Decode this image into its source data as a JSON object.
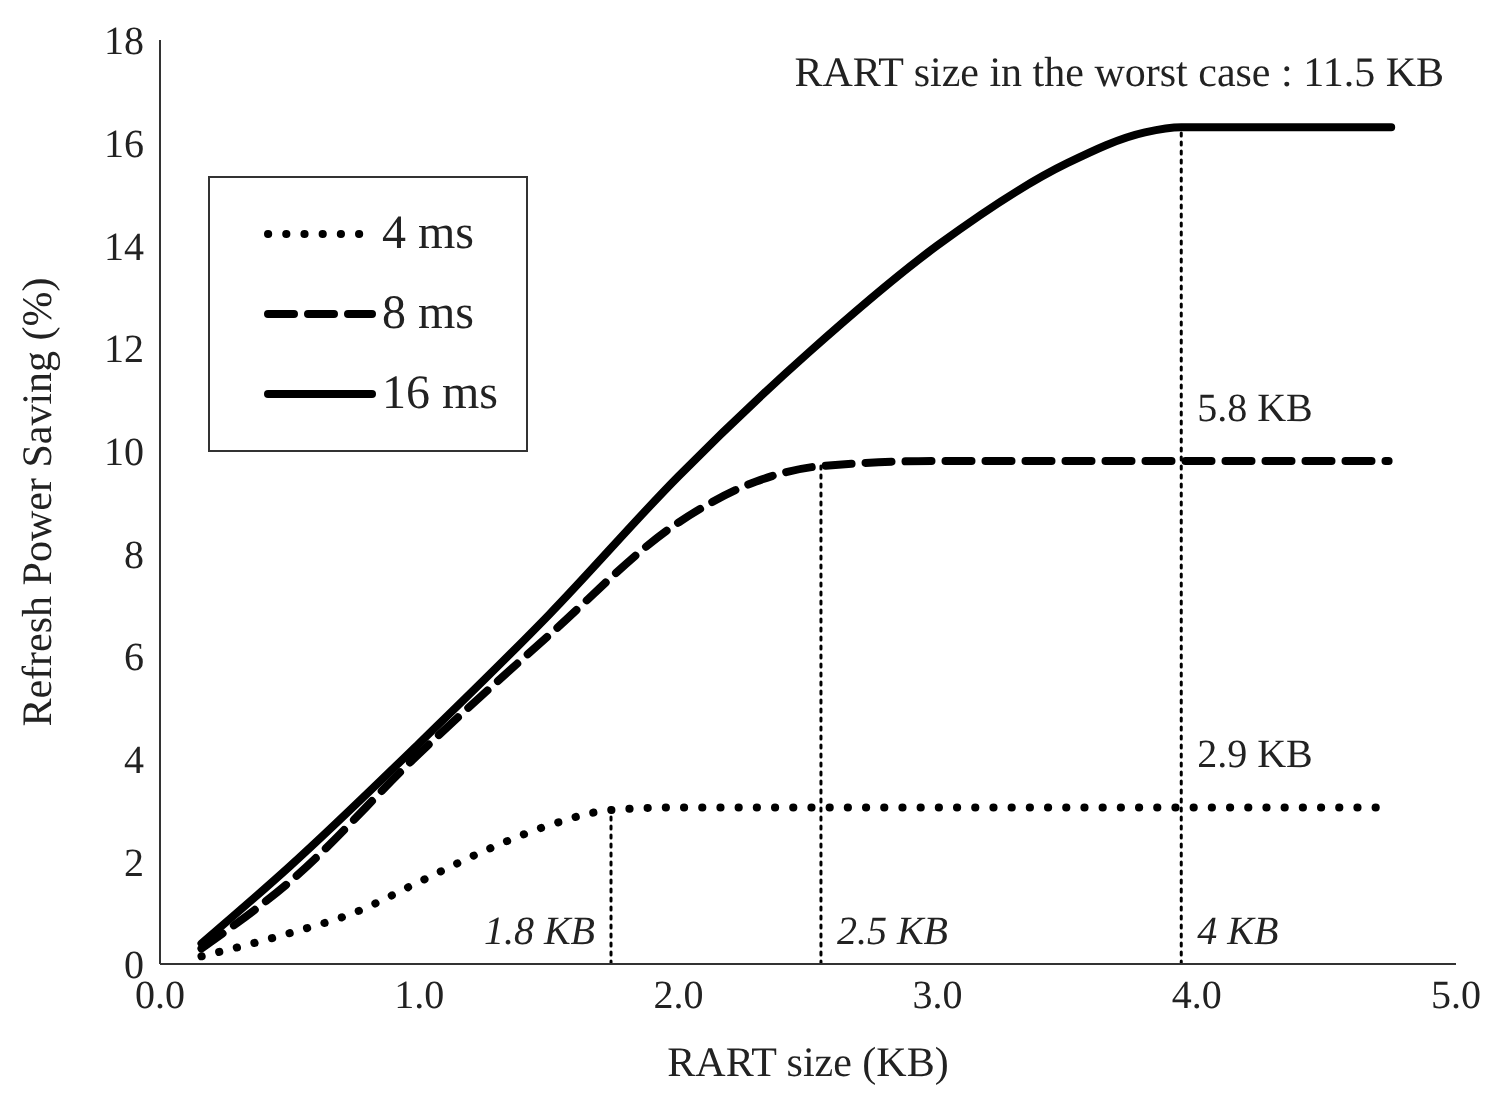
{
  "chart_data": {
    "type": "line",
    "xlabel": "RART size (KB)",
    "ylabel": "Refresh Power Saving (%)",
    "xlim": [
      0,
      5
    ],
    "xticks": [
      {
        "value": 0,
        "label": "0.0"
      },
      {
        "value": 1,
        "label": "1.0"
      },
      {
        "value": 2,
        "label": "2.0"
      },
      {
        "value": 3,
        "label": "3.0"
      },
      {
        "value": 4,
        "label": "4.0"
      },
      {
        "value": 5,
        "label": "5.0"
      }
    ],
    "ylim": [
      0,
      18
    ],
    "yticks": [
      0,
      2,
      4,
      6,
      8,
      10,
      12,
      14,
      16,
      18
    ],
    "legend": "top left",
    "marker": "none",
    "series": [
      {
        "name": "4 ms",
        "color": "#000000",
        "line_style": "dotted",
        "x": [
          0.16,
          0.5,
          0.75,
          1.0,
          1.25,
          1.5,
          1.74,
          2.0,
          3.0,
          4.0,
          4.72
        ],
        "values": [
          0.15,
          0.6,
          1.0,
          1.6,
          2.2,
          2.7,
          3.0,
          3.05,
          3.05,
          3.05,
          3.05
        ]
      },
      {
        "name": "8 ms",
        "color": "#000000",
        "line_style": "dashed",
        "x": [
          0.16,
          0.5,
          1.0,
          1.5,
          2.0,
          2.3,
          2.55,
          3.0,
          4.0,
          4.74
        ],
        "values": [
          0.3,
          1.6,
          4.1,
          6.4,
          8.6,
          9.4,
          9.7,
          9.8,
          9.8,
          9.8
        ]
      },
      {
        "name": "16 ms",
        "color": "#000000",
        "line_style": "solid",
        "x": [
          0.16,
          0.5,
          1.0,
          1.5,
          2.0,
          2.5,
          3.0,
          3.5,
          3.8,
          3.94,
          4.75
        ],
        "values": [
          0.4,
          1.9,
          4.3,
          6.8,
          9.5,
          11.9,
          14.0,
          15.6,
          16.2,
          16.3,
          16.3
        ]
      },
      {
        "color": "#000000",
        "line_style": "dotted",
        "x": [
          1.74,
          1.74
        ],
        "values": [
          0,
          3.0
        ]
      },
      {
        "color": "#000000",
        "line_style": "dotted",
        "x": [
          2.55,
          2.55
        ],
        "values": [
          0,
          9.7
        ]
      },
      {
        "color": "#000000",
        "line_style": "dotted",
        "x": [
          3.94,
          3.94
        ],
        "values": [
          0,
          16.3
        ]
      }
    ],
    "annotations": [
      "RART size in the worst case : 11.5 KB",
      {
        "text": "1.8 KB",
        "x": 1.74,
        "y": 0
      },
      {
        "text": "2.5 KB",
        "x": 2.55,
        "y": 0
      },
      {
        "text": "4 KB",
        "x": 3.94,
        "y": 0
      },
      {
        "text": "2.9 KB",
        "x": 3.94,
        "y": 3.05
      },
      {
        "text": "5.8 KB",
        "x": 3.94,
        "y": 9.8
      }
    ]
  }
}
